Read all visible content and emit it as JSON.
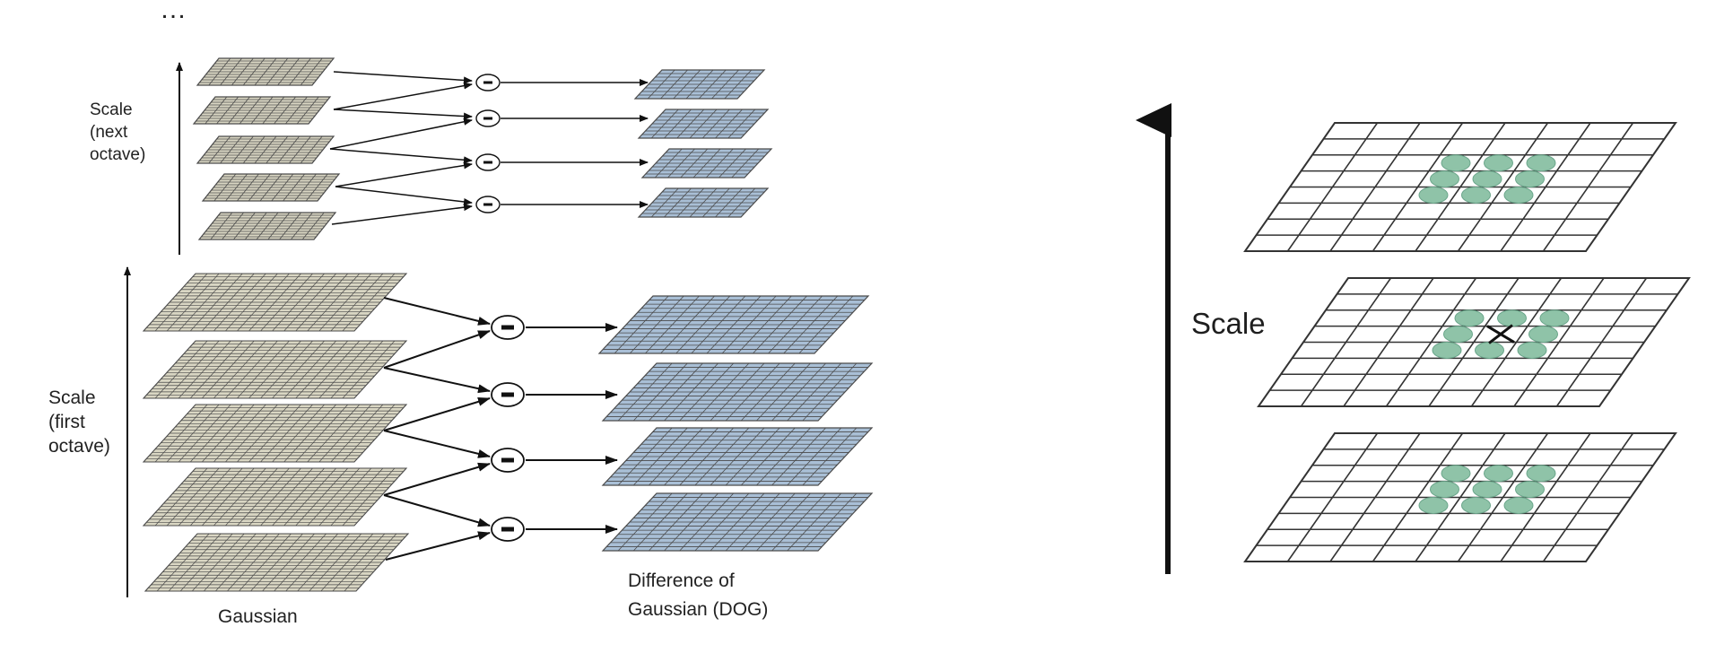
{
  "left_panel": {
    "ellipsis": "…",
    "scale_next_octave": "Scale\n(next\noctave)",
    "scale_first_octave": "Scale\n(first\noctave)",
    "gaussian_label": "Gaussian",
    "dog_label": "Difference of\nGaussian (DOG)",
    "operator_symbol": "−",
    "colors": {
      "gaussian_grid_fill": "#d9d6c3",
      "dog_grid_fill": "#a9bfd6",
      "grid_line": "#4a4a4a"
    }
  },
  "right_panel": {
    "scale_label": "Scale",
    "center_marker": "×",
    "colors": {
      "neighbor_fill": "#8fc3a8",
      "grid_line": "#333333"
    }
  }
}
